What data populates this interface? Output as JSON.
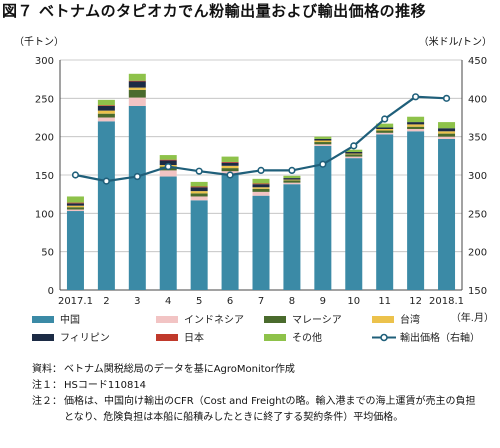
{
  "title": {
    "figure_no": "図７",
    "text": "ベトナムのタピオカでん粉輸出量および輸出価格の推移"
  },
  "units": {
    "left": "（千トン）",
    "right": "（米ドル/トン）",
    "x": "（年.月）"
  },
  "chart_data": {
    "type": "bar",
    "stacked": true,
    "categories": [
      "2017.1",
      "2",
      "3",
      "4",
      "5",
      "6",
      "7",
      "8",
      "9",
      "10",
      "11",
      "12",
      "2018.1"
    ],
    "series": [
      {
        "name": "中国",
        "color": "#3b8aa6",
        "values": [
          103,
          220,
          240,
          148,
          117,
          150,
          123,
          138,
          188,
          172,
          203,
          207,
          197
        ]
      },
      {
        "name": "インドネシア",
        "color": "#f2c4c4",
        "values": [
          2,
          5,
          11,
          8,
          5,
          5,
          5,
          2,
          2,
          2,
          2,
          3,
          3
        ]
      },
      {
        "name": "マレーシア",
        "color": "#4a6b2d",
        "values": [
          3,
          5,
          10,
          5,
          4,
          4,
          4,
          3,
          3,
          3,
          3,
          3,
          4
        ]
      },
      {
        "name": "台湾",
        "color": "#ecc24c",
        "values": [
          2,
          4,
          3,
          2,
          3,
          3,
          2,
          1,
          2,
          1,
          2,
          3,
          3
        ]
      },
      {
        "name": "フィリピン",
        "color": "#1c2b45",
        "values": [
          3,
          6,
          8,
          6,
          5,
          4,
          4,
          2,
          2,
          2,
          2,
          3,
          4
        ]
      },
      {
        "name": "日本",
        "color": "#c0392b",
        "values": [
          1,
          1,
          1,
          1,
          1,
          1,
          1,
          0,
          0,
          0,
          0,
          0,
          0
        ]
      },
      {
        "name": "その他",
        "color": "#8ec24a",
        "values": [
          8,
          7,
          9,
          6,
          6,
          7,
          6,
          3,
          3,
          3,
          5,
          7,
          8
        ]
      }
    ],
    "line": {
      "name": "輸出価格（右軸）",
      "color": "#1f5f7a",
      "values": [
        300,
        292,
        298,
        311,
        305,
        300,
        306,
        306,
        314,
        338,
        373,
        402,
        400
      ]
    },
    "ylim_left": [
      0,
      300
    ],
    "yticks_left": [
      0,
      50,
      100,
      150,
      200,
      250,
      300
    ],
    "ylim_right": [
      150,
      450
    ],
    "yticks_right": [
      150,
      200,
      250,
      300,
      350,
      400,
      450
    ],
    "grid": true,
    "legend_position": "bottom"
  },
  "notes": [
    {
      "label": "資料：",
      "text": "ベトナム関税総局のデータを基にAgroMonitor作成"
    },
    {
      "label": "注１：",
      "text": "HSコード110814"
    },
    {
      "label": "注２：",
      "text": "価格は、中国向け輸出のCFR（Cost and Freightの略。輸入港までの海上運賃が売主の負担となり、危険負担は本船に船積みしたときに終了する契約条件）平均価格。"
    }
  ]
}
